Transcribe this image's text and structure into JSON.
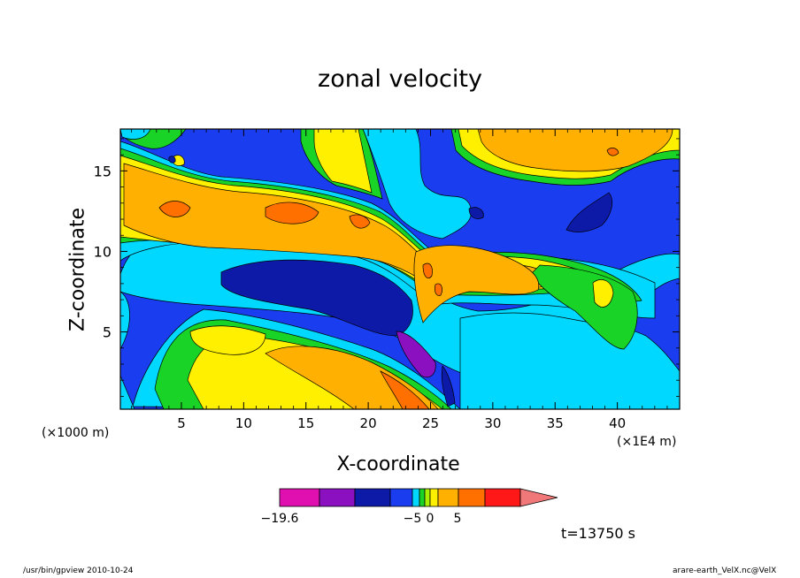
{
  "chart_data": {
    "type": "heatmap",
    "title": "zonal velocity",
    "xlabel": "X-coordinate",
    "ylabel": "Z-coordinate",
    "x_unit_label": "(×1000 m)",
    "x_scale_label": "(×1E4 m)",
    "xlim": [
      0.1,
      45
    ],
    "ylim": [
      0.2,
      17.6
    ],
    "x_ticks": [
      5,
      10,
      15,
      20,
      25,
      30,
      35,
      40
    ],
    "y_ticks": [
      5,
      10,
      15
    ],
    "time_label": "t=13750 s",
    "colorbar": {
      "tick_labels": [
        {
          "label": "−19.6",
          "value": -19.6
        },
        {
          "label": "−5",
          "value": -5
        },
        {
          "label": "0",
          "value": 0
        },
        {
          "label": "5",
          "value": 5
        }
      ],
      "bins": [
        {
          "min": -19.6,
          "max": -16,
          "color": "#e010b0"
        },
        {
          "min": -16,
          "max": -12,
          "color": "#8a10c0"
        },
        {
          "min": -12,
          "max": -7,
          "color": "#0d1aa8"
        },
        {
          "min": -7,
          "max": -4,
          "color": "#1a3df0"
        },
        {
          "min": -4,
          "max": -2,
          "color": "#00d8ff"
        },
        {
          "min": -2,
          "max": -1,
          "color": "#19d426"
        },
        {
          "min": -1,
          "max": 0,
          "color": "#a8f000"
        },
        {
          "min": 0,
          "max": 1,
          "color": "#fff000"
        },
        {
          "min": 1,
          "max": 3,
          "color": "#ffb000"
        },
        {
          "min": 3,
          "max": 6,
          "color": "#ff7000"
        },
        {
          "min": 6,
          "max": 10,
          "color": "#ff1818"
        },
        {
          "min": 10,
          "max": 14,
          "color": "#f07878"
        }
      ]
    }
  },
  "footer": {
    "left": "/usr/bin/gpview   2010-10-24",
    "right": "arare-earth_VelX.nc@VelX"
  }
}
